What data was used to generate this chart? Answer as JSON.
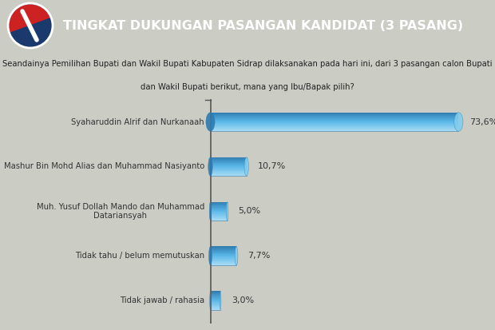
{
  "title": "TINGKAT DUKUNGAN PASANGAN KANDIDAT (3 PASANG)",
  "categories": [
    "Syaharuddin Alrif dan Nurkanaah",
    "Mashur Bin Mohd Alias dan Muhammad Nasiyanto",
    "Muh. Yusuf Dollah Mando dan Muhammad\nDatariansyah",
    "Tidak tahu / belum memutuskan",
    "Tidak jawab / rahasia"
  ],
  "values": [
    73.6,
    10.7,
    5.0,
    7.7,
    3.0
  ],
  "value_labels": [
    "73,6%",
    "10,7%",
    "5,0%",
    "7,7%",
    "3,0%"
  ],
  "bar_color_mid": "#5BB8E8",
  "bar_color_light": "#A8DCF5",
  "bar_color_dark": "#2E7BB0",
  "bar_color_top": "#7ECEF0",
  "background_color": "#CBCCC4",
  "header_bg_color": "#1A5296",
  "header_text_color": "#FFFFFF",
  "label_text_color": "#333333",
  "value_text_color": "#333333",
  "max_value": 80,
  "subtitle_line1": "Seandainya Pemilihan Bupati dan Wakil Bupati Kabupaten Sidrap dilaksanakan pada hari ini, dari 3 pasangan calon Bupati",
  "subtitle_line2": "dan Wakil Bupati berikut, mana yang Ibu/Bapak pilih?"
}
